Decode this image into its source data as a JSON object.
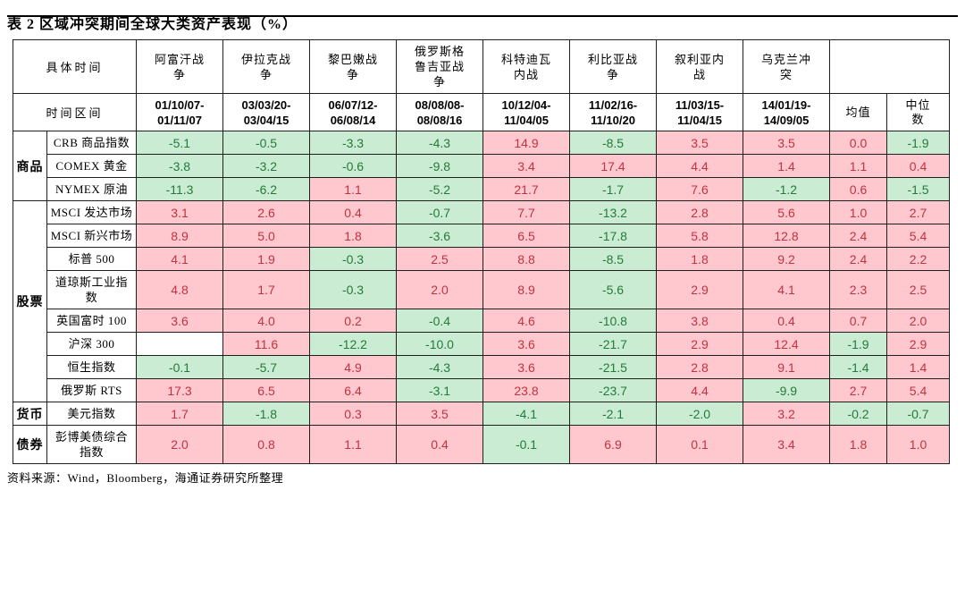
{
  "title": "表 2 区域冲突期间全球大类资产表现（%）",
  "source": "资料来源：Wind，Bloomberg，海通证券研究所整理",
  "colors": {
    "positive_bg": "#ffc7ce",
    "positive_text": "#bf3441",
    "negative_bg": "#c9ecd3",
    "negative_text": "#27793b",
    "border": "#1f1f1f"
  },
  "table": {
    "corner_top": "具体时间",
    "corner_bottom": "时间区间",
    "mean_label": "均值",
    "median_label": "中位数",
    "conflicts": [
      {
        "name": "阿富汗战争",
        "period": "01/10/07-01/11/07"
      },
      {
        "name": "伊拉克战争",
        "period": "03/03/20-03/04/15"
      },
      {
        "name": "黎巴嫩战争",
        "period": "06/07/12-06/08/14"
      },
      {
        "name": "俄罗斯格鲁吉亚战争",
        "period": "08/08/08-08/08/16"
      },
      {
        "name": "科特迪瓦内战",
        "period": "10/12/04-11/04/05"
      },
      {
        "name": "利比亚战争",
        "period": "11/02/16-11/10/20"
      },
      {
        "name": "叙利亚内战",
        "period": "11/03/15-11/04/15"
      },
      {
        "name": "乌克兰冲突",
        "period": "14/01/19-14/09/05"
      }
    ],
    "groups": [
      {
        "category": "商品",
        "rows": [
          {
            "name": "CRB 商品指数",
            "values": [
              "-5.1",
              "-0.5",
              "-3.3",
              "-4.3",
              "14.9",
              "-8.5",
              "3.5",
              "3.5",
              "0.0",
              "-1.9"
            ]
          },
          {
            "name": "COMEX 黄金",
            "values": [
              "-3.8",
              "-3.2",
              "-0.6",
              "-9.8",
              "3.4",
              "17.4",
              "4.4",
              "1.4",
              "1.1",
              "0.4"
            ]
          },
          {
            "name": "NYMEX 原油",
            "values": [
              "-11.3",
              "-6.2",
              "1.1",
              "-5.2",
              "21.7",
              "-1.7",
              "7.6",
              "-1.2",
              "0.6",
              "-1.5"
            ]
          }
        ]
      },
      {
        "category": "股票",
        "rows": [
          {
            "name": "MSCI 发达市场",
            "values": [
              "3.1",
              "2.6",
              "0.4",
              "-0.7",
              "7.7",
              "-13.2",
              "2.8",
              "5.6",
              "1.0",
              "2.7"
            ]
          },
          {
            "name": "MSCI 新兴市场",
            "values": [
              "8.9",
              "5.0",
              "1.8",
              "-3.6",
              "6.5",
              "-17.8",
              "5.8",
              "12.8",
              "2.4",
              "5.4"
            ]
          },
          {
            "name": "标普 500",
            "values": [
              "4.1",
              "1.9",
              "-0.3",
              "2.5",
              "8.8",
              "-8.5",
              "1.8",
              "9.2",
              "2.4",
              "2.2"
            ]
          },
          {
            "name": "道琼斯工业指数",
            "values": [
              "4.8",
              "1.7",
              "-0.3",
              "2.0",
              "8.9",
              "-5.6",
              "2.9",
              "4.1",
              "2.3",
              "2.5"
            ]
          },
          {
            "name": "英国富时 100",
            "values": [
              "3.6",
              "4.0",
              "0.2",
              "-0.4",
              "4.6",
              "-10.8",
              "3.8",
              "0.4",
              "0.7",
              "2.0"
            ]
          },
          {
            "name": "沪深 300",
            "values": [
              null,
              "11.6",
              "-12.2",
              "-10.0",
              "3.6",
              "-21.7",
              "2.9",
              "12.4",
              "-1.9",
              "2.9"
            ]
          },
          {
            "name": "恒生指数",
            "values": [
              "-0.1",
              "-5.7",
              "4.9",
              "-4.3",
              "3.6",
              "-21.5",
              "2.8",
              "9.1",
              "-1.4",
              "1.4"
            ]
          },
          {
            "name": "俄罗斯 RTS",
            "values": [
              "17.3",
              "6.5",
              "6.4",
              "-3.1",
              "23.8",
              "-23.7",
              "4.4",
              "-9.9",
              "2.7",
              "5.4"
            ]
          }
        ]
      },
      {
        "category": "货币",
        "rows": [
          {
            "name": "美元指数",
            "values": [
              "1.7",
              "-1.8",
              "0.3",
              "3.5",
              "-4.1",
              "-2.1",
              "-2.0",
              "3.2",
              "-0.2",
              "-0.7"
            ]
          }
        ]
      },
      {
        "category": "债券",
        "rows": [
          {
            "name": "彭博美债综合指数",
            "values": [
              "2.0",
              "0.8",
              "1.1",
              "0.4",
              "-0.1",
              "6.9",
              "0.1",
              "3.4",
              "1.8",
              "1.0"
            ]
          }
        ]
      }
    ]
  }
}
